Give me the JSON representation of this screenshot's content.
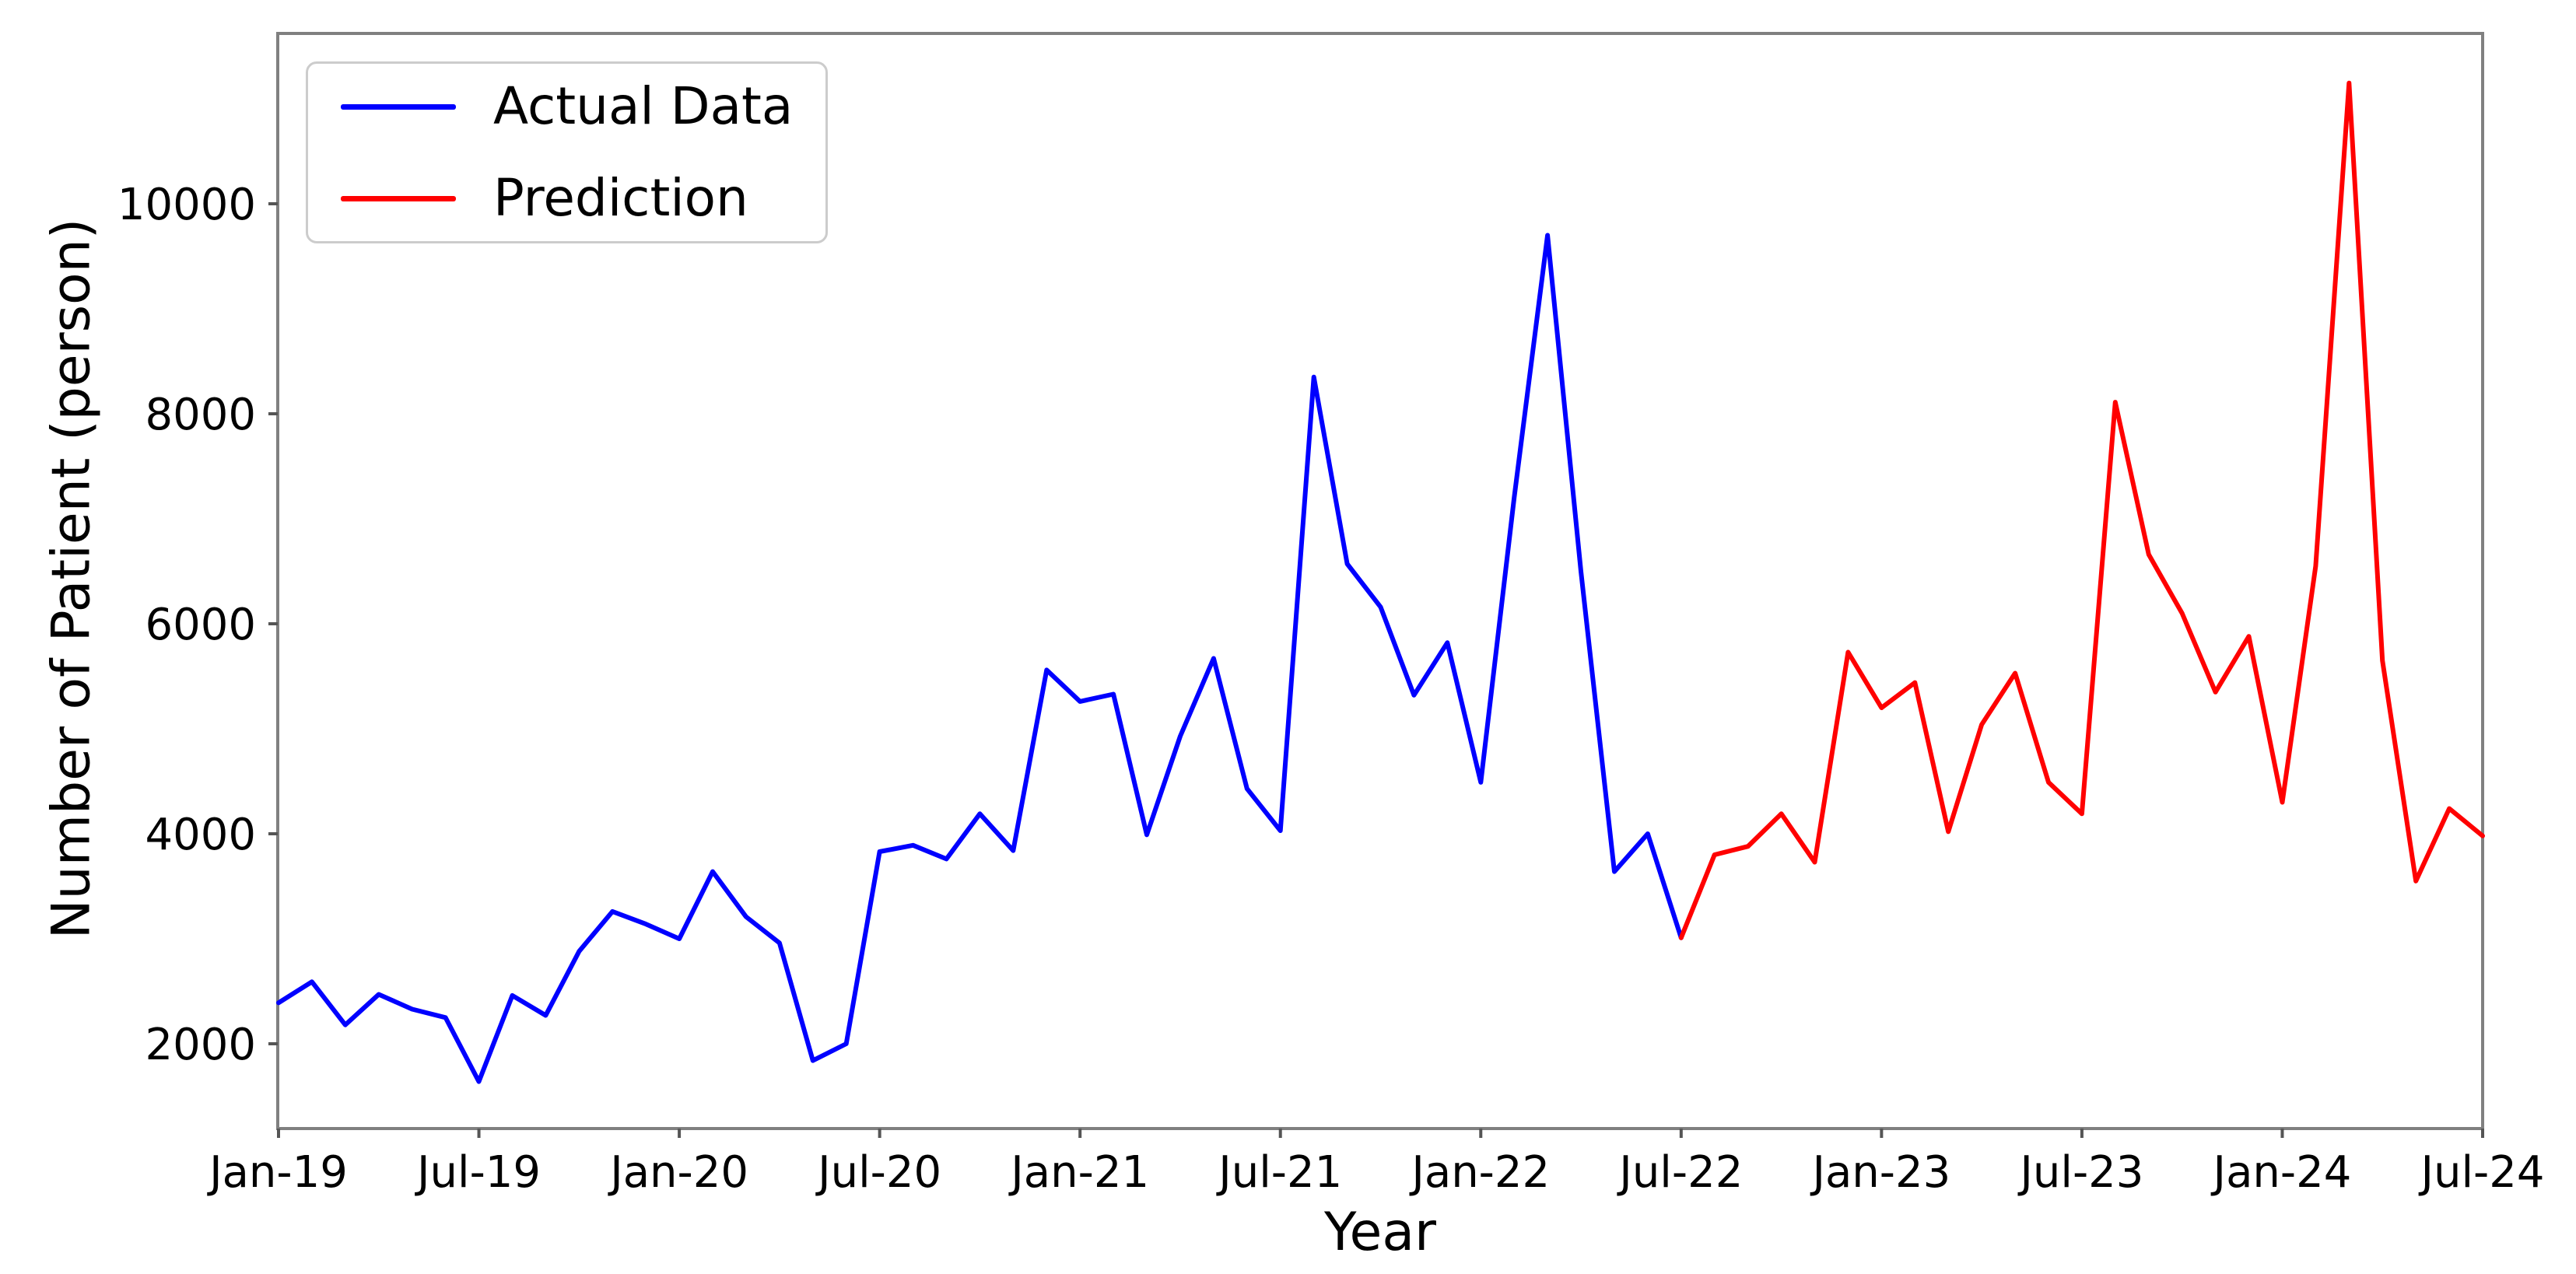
{
  "figure": {
    "ylabel": "Number of Patient (person)",
    "xlabel": "Year",
    "background": "#ffffff",
    "spine_color": "#808080",
    "tick_color": "#555555",
    "legend": {
      "entries": [
        {
          "label": "Actual Data",
          "color": "#0000ff"
        },
        {
          "label": "Prediction",
          "color": "#ff0000"
        }
      ]
    }
  },
  "chart_data": {
    "type": "line",
    "title": "",
    "xlabel": "Year",
    "ylabel": "Number of Patient (person)",
    "grid": false,
    "legend_position": "upper-left",
    "ylim": [
      1190,
      11620
    ],
    "xlim_month_indices": [
      0,
      66
    ],
    "y_ticks": [
      2000,
      4000,
      6000,
      8000,
      10000
    ],
    "x_tick_labels": [
      "Jan-19",
      "Jul-19",
      "Jan-20",
      "Jul-20",
      "Jan-21",
      "Jul-21",
      "Jan-22",
      "Jul-22",
      "Jan-23",
      "Jul-23",
      "Jan-24",
      "Jul-24"
    ],
    "x_tick_month_indices": [
      0,
      6,
      12,
      18,
      24,
      30,
      36,
      42,
      48,
      54,
      60,
      66
    ],
    "months": [
      "Jan-19",
      "Feb-19",
      "Mar-19",
      "Apr-19",
      "May-19",
      "Jun-19",
      "Jul-19",
      "Aug-19",
      "Sep-19",
      "Oct-19",
      "Nov-19",
      "Dec-19",
      "Jan-20",
      "Feb-20",
      "Mar-20",
      "Apr-20",
      "May-20",
      "Jun-20",
      "Jul-20",
      "Aug-20",
      "Sep-20",
      "Oct-20",
      "Nov-20",
      "Dec-20",
      "Jan-21",
      "Feb-21",
      "Mar-21",
      "Apr-21",
      "May-21",
      "Jun-21",
      "Jul-21",
      "Aug-21",
      "Sep-21",
      "Oct-21",
      "Nov-21",
      "Dec-21",
      "Jan-22",
      "Feb-22",
      "Mar-22",
      "Apr-22",
      "May-22",
      "Jun-22",
      "Jul-22",
      "Aug-22",
      "Sep-22",
      "Oct-22",
      "Nov-22",
      "Dec-22",
      "Jan-23",
      "Feb-23",
      "Mar-23",
      "Apr-23",
      "May-23",
      "Jun-23",
      "Jul-23",
      "Aug-23",
      "Sep-23",
      "Oct-23",
      "Nov-23",
      "Dec-23",
      "Jan-24",
      "Feb-24",
      "Mar-24",
      "Apr-24",
      "May-24",
      "Jun-24",
      "Jul-24"
    ],
    "series": [
      {
        "name": "Actual Data",
        "color": "#0000ff",
        "start_month_index": 0,
        "values": [
          2390,
          2590,
          2180,
          2470,
          2330,
          2250,
          1640,
          2460,
          2270,
          2880,
          3260,
          3140,
          3000,
          3640,
          3210,
          2960,
          1840,
          2000,
          3830,
          3890,
          3760,
          4190,
          3840,
          5560,
          5260,
          5330,
          3990,
          4930,
          5670,
          4430,
          4030,
          8350,
          6570,
          6160,
          5320,
          5820,
          4490,
          7200,
          9700,
          6500,
          3640,
          4000,
          3010
        ]
      },
      {
        "name": "Prediction",
        "color": "#ff0000",
        "start_month_index": 42,
        "values": [
          3010,
          3800,
          3880,
          4190,
          3730,
          5730,
          5200,
          5440,
          4020,
          5040,
          5530,
          4490,
          4190,
          8110,
          6660,
          6100,
          5350,
          5880,
          4300,
          6550,
          11150,
          5650,
          3550,
          4240,
          3980
        ]
      }
    ]
  }
}
